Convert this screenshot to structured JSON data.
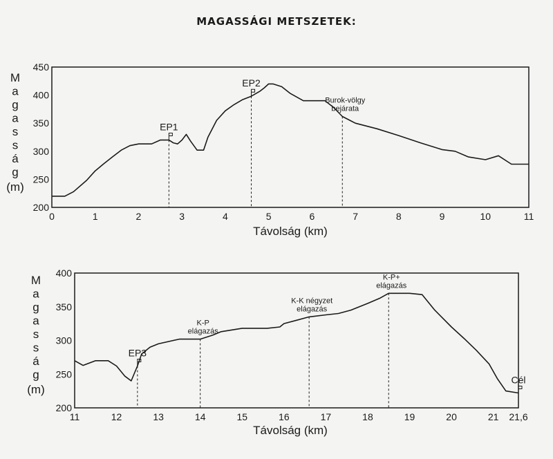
{
  "title": "MAGASSÁGI METSZETEK:",
  "chart_data": [
    {
      "type": "line",
      "ylabel": "Magasság (m)",
      "ylabel_letters": [
        "M",
        "a",
        "g",
        "a",
        "s",
        "s",
        "á",
        "g"
      ],
      "ylabel_unit": "(m)",
      "xlabel": "Távolság (km)",
      "xlim": [
        0,
        11
      ],
      "ylim": [
        200,
        450
      ],
      "x_ticks": [
        "0",
        "1",
        "2",
        "3",
        "4",
        "5",
        "6",
        "7",
        "8",
        "9",
        "10",
        "11"
      ],
      "y_ticks": [
        "450",
        "400",
        "350",
        "300",
        "250",
        "200"
      ],
      "x": [
        0,
        0.3,
        0.5,
        0.8,
        1,
        1.2,
        1.4,
        1.6,
        1.8,
        2,
        2.3,
        2.5,
        2.7,
        2.8,
        2.9,
        3,
        3.1,
        3.2,
        3.35,
        3.5,
        3.6,
        3.8,
        4,
        4.2,
        4.4,
        4.6,
        4.8,
        4.9,
        5,
        5.1,
        5.3,
        5.5,
        5.8,
        6,
        6.3,
        6.5,
        6.7,
        7,
        7.5,
        8,
        8.5,
        9,
        9.3,
        9.6,
        10,
        10.3,
        10.6,
        11
      ],
      "values": [
        220,
        220,
        228,
        248,
        265,
        278,
        290,
        302,
        310,
        313,
        313,
        320,
        320,
        315,
        313,
        320,
        330,
        318,
        302,
        302,
        325,
        355,
        372,
        383,
        392,
        398,
        407,
        413,
        420,
        420,
        415,
        403,
        390,
        390,
        390,
        378,
        362,
        350,
        340,
        328,
        315,
        303,
        300,
        290,
        285,
        292,
        277,
        277
      ],
      "annotations": [
        {
          "x": 2.7,
          "label": "EP1",
          "type": "ep"
        },
        {
          "x": 4.6,
          "label": "EP2",
          "type": "ep"
        },
        {
          "x": 6.7,
          "label": "Burok-völgy\nbejárata",
          "type": "text"
        }
      ]
    },
    {
      "type": "line",
      "ylabel": "Magasság (m)",
      "ylabel_letters": [
        "M",
        "a",
        "g",
        "a",
        "s",
        "s",
        "á",
        "g"
      ],
      "ylabel_unit": "(m)",
      "xlabel": "Távolság (km)",
      "xlim": [
        11,
        21.6
      ],
      "ylim": [
        200,
        400
      ],
      "x_ticks": [
        "11",
        "12",
        "13",
        "14",
        "15",
        "16",
        "17",
        "18",
        "19",
        "20",
        "21",
        "21,6"
      ],
      "y_ticks": [
        "400",
        "350",
        "300",
        "250",
        "200"
      ],
      "x": [
        11,
        11.2,
        11.5,
        11.8,
        12,
        12.2,
        12.35,
        12.5,
        12.6,
        12.8,
        13,
        13.5,
        14,
        14.3,
        14.5,
        15,
        15.3,
        15.6,
        15.9,
        16,
        16.3,
        16.6,
        17,
        17.3,
        17.6,
        18,
        18.3,
        18.5,
        18.8,
        19,
        19.3,
        19.6,
        20,
        20.3,
        20.6,
        20.9,
        21.1,
        21.3,
        21.6
      ],
      "values": [
        270,
        263,
        270,
        270,
        262,
        247,
        240,
        262,
        280,
        290,
        295,
        302,
        302,
        308,
        313,
        318,
        318,
        318,
        320,
        325,
        330,
        335,
        338,
        340,
        345,
        355,
        363,
        370,
        370,
        370,
        368,
        345,
        320,
        303,
        285,
        265,
        243,
        225,
        222
      ],
      "annotations": [
        {
          "x": 12.5,
          "label": "EP3",
          "type": "ep"
        },
        {
          "x": 14.0,
          "label": "K-P\nelágazás",
          "type": "text"
        },
        {
          "x": 16.6,
          "label": "K-K négyzet\nelágazás",
          "type": "text"
        },
        {
          "x": 18.5,
          "label": "K-P+\nelágazás",
          "type": "text"
        },
        {
          "x": 21.6,
          "label": "Cél",
          "type": "ep"
        }
      ]
    }
  ]
}
